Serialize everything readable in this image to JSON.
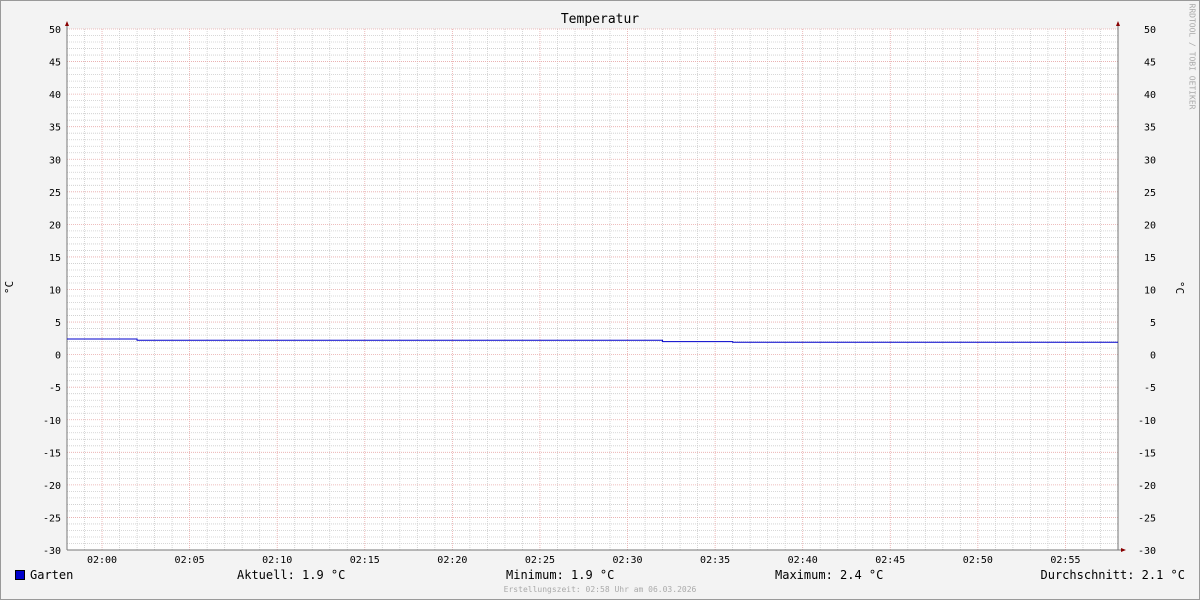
{
  "chart_data": {
    "type": "line",
    "title": "Temperatur",
    "ylabel": "°C",
    "ylabel_right": "°C",
    "watermark": "RRDTOOL / TOBI OETIKER",
    "ylim": [
      -30,
      50
    ],
    "yticks": [
      50,
      45,
      40,
      35,
      30,
      25,
      20,
      15,
      10,
      5,
      0,
      -5,
      -10,
      -15,
      -20,
      -25,
      -30
    ],
    "xlim": [
      "01:58",
      "02:58"
    ],
    "xticks": [
      "02:00",
      "02:05",
      "02:10",
      "02:15",
      "02:20",
      "02:25",
      "02:30",
      "02:35",
      "02:40",
      "02:45",
      "02:50",
      "02:55"
    ],
    "grid": true,
    "series": [
      {
        "name": "Garten",
        "color": "#0000cc",
        "x": [
          "01:58",
          "02:02",
          "02:02",
          "02:32",
          "02:32",
          "02:36",
          "02:36",
          "02:58"
        ],
        "y": [
          2.4,
          2.4,
          2.2,
          2.2,
          2.0,
          2.0,
          1.9,
          1.9
        ]
      }
    ],
    "legend": {
      "series": "Garten",
      "aktuell": "Aktuell: 1.9 °C",
      "minimum": "Minimum: 1.9 °C",
      "maximum": "Maximum: 2.4 °C",
      "durchschnitt": "Durchschnitt: 2.1 °C"
    },
    "footer": "Erstellungszeit: 02:58 Uhr am 06.03.2026"
  }
}
